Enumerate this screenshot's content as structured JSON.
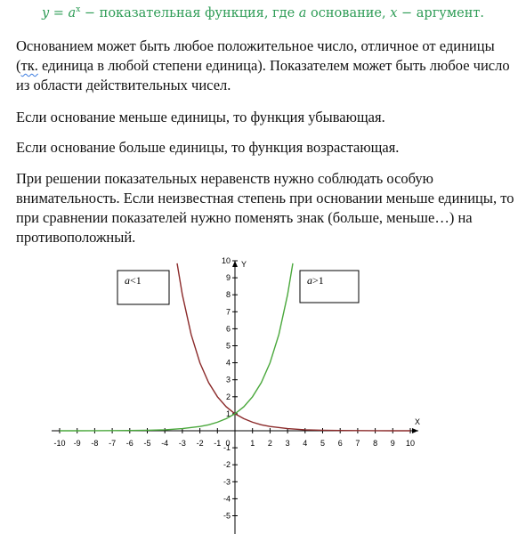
{
  "formula": {
    "prefix": "y = a",
    "exponent": "x",
    "dash1": " − ",
    "desc": " показательная функция, где ",
    "base_var": "a",
    "base_word": " основание, ",
    "arg_var": "x",
    "dash2": " − ",
    "arg_word": "аргумент."
  },
  "paragraphs": {
    "p1": "Основанием может быть любое положительное число, отличное от единицы (тк. единица в любой степени единица). Показателем может быть любое число из области действительных чисел.",
    "p2": "Если основание меньше единицы, то функция убывающая.",
    "p3": "Если основание больше единицы, то функция возрастающая.",
    "p4": "При решении показательных неравенств нужно соблюдать особую внимательность. Если неизвестная степень при основании меньше единицы, то при сравнении показателей нужно поменять знак (больше, меньше…) на противоположный."
  },
  "chart_data": {
    "type": "line",
    "xlabel": "X",
    "ylabel": "Y",
    "xlim": [
      -10,
      10
    ],
    "ylim": [
      -5,
      10
    ],
    "x_ticks": [
      "-10",
      "-9",
      "-8",
      "-7",
      "-6",
      "-5",
      "-4",
      "-3",
      "-2",
      "-1",
      "0",
      "1",
      "2",
      "3",
      "4",
      "5",
      "6",
      "7",
      "8",
      "9",
      "10"
    ],
    "y_ticks": [
      "10",
      "9",
      "8",
      "7",
      "6",
      "5",
      "4",
      "3",
      "2",
      "1",
      "-1",
      "-2",
      "-3",
      "-4",
      "-5"
    ],
    "series": [
      {
        "name": "a<1",
        "color": "#8b2a2a",
        "x": [
          -3.3,
          -3,
          -2.5,
          -2,
          -1.5,
          -1,
          -0.5,
          0,
          0.5,
          1,
          1.5,
          2,
          3,
          4,
          5,
          6,
          7,
          8,
          9,
          10
        ],
        "y": [
          9.85,
          8.0,
          5.66,
          4.0,
          2.83,
          2.0,
          1.41,
          1.0,
          0.71,
          0.5,
          0.35,
          0.25,
          0.125,
          0.06,
          0.03,
          0.016,
          0.008,
          0.004,
          0.002,
          0.001
        ]
      },
      {
        "name": "a>1",
        "color": "#4aa83c",
        "x": [
          -10,
          -9,
          -8,
          -7,
          -6,
          -5,
          -4,
          -3,
          -2,
          -1.5,
          -1,
          -0.5,
          0,
          0.5,
          1,
          1.5,
          2,
          2.5,
          3,
          3.3
        ],
        "y": [
          0.001,
          0.002,
          0.004,
          0.008,
          0.016,
          0.03,
          0.06,
          0.125,
          0.25,
          0.35,
          0.5,
          0.71,
          1.0,
          1.41,
          2.0,
          2.83,
          4.0,
          5.66,
          8.0,
          9.85
        ]
      }
    ],
    "legend_boxes": [
      {
        "var": "a",
        "rel": "<1"
      },
      {
        "var": "a",
        "rel": ">1"
      }
    ]
  }
}
